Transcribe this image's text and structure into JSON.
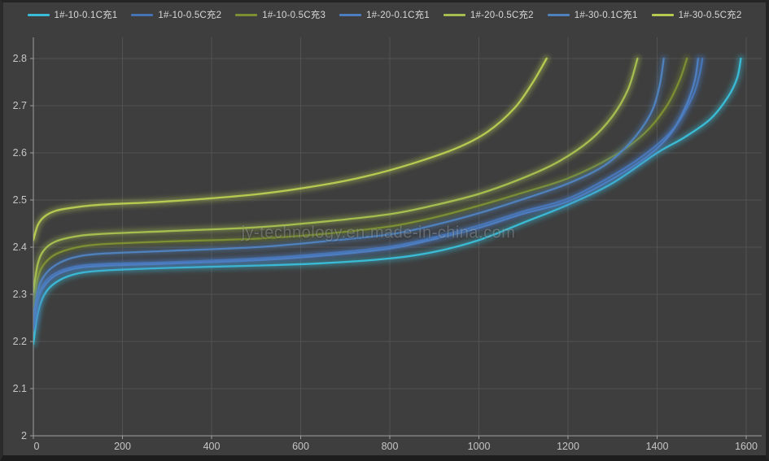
{
  "window": {
    "watermark": "jy-technology.en.made-in-china.com"
  },
  "theme": {
    "background": "#3e3e3e",
    "gridline": "#525252",
    "axis_line": "#a0a0a0",
    "tick_label": "#c6c6c6",
    "legend_text": "#d8d8d8"
  },
  "chart_data": {
    "type": "line",
    "title": "",
    "xlabel": "",
    "ylabel": "",
    "xlim": [
      0,
      1600
    ],
    "ylim": [
      2.0,
      2.8
    ],
    "grid": true,
    "legend_position": "top",
    "x_ticks": [
      0,
      200,
      400,
      600,
      800,
      1000,
      1200,
      1400,
      1600
    ],
    "x_tick_labels": [
      "0",
      "200",
      "400",
      "600",
      "800",
      "1000",
      "1200",
      "1400",
      "1600"
    ],
    "y_ticks": [
      2.0,
      2.1,
      2.2,
      2.3,
      2.4,
      2.5,
      2.6,
      2.7,
      2.8
    ],
    "y_tick_labels": [
      "2",
      "2.1",
      "2.2",
      "2.3",
      "2.4",
      "2.5",
      "2.6",
      "2.7",
      "2.8"
    ],
    "series": [
      {
        "name": "1#-10-0.1C充1",
        "color": "#3bbcd6",
        "points": [
          [
            0,
            2.195
          ],
          [
            10,
            2.26
          ],
          [
            25,
            2.3
          ],
          [
            50,
            2.325
          ],
          [
            90,
            2.342
          ],
          [
            150,
            2.35
          ],
          [
            300,
            2.356
          ],
          [
            500,
            2.361
          ],
          [
            650,
            2.366
          ],
          [
            800,
            2.376
          ],
          [
            900,
            2.39
          ],
          [
            1000,
            2.415
          ],
          [
            1100,
            2.452
          ],
          [
            1200,
            2.49
          ],
          [
            1300,
            2.536
          ],
          [
            1400,
            2.6
          ],
          [
            1460,
            2.632
          ],
          [
            1520,
            2.672
          ],
          [
            1560,
            2.72
          ],
          [
            1580,
            2.76
          ],
          [
            1588,
            2.8
          ]
        ]
      },
      {
        "name": "1#-10-0.5C充2",
        "color": "#4673b4",
        "points": [
          [
            0,
            2.235
          ],
          [
            10,
            2.295
          ],
          [
            25,
            2.325
          ],
          [
            50,
            2.345
          ],
          [
            90,
            2.358
          ],
          [
            150,
            2.364
          ],
          [
            300,
            2.368
          ],
          [
            500,
            2.376
          ],
          [
            650,
            2.386
          ],
          [
            800,
            2.401
          ],
          [
            900,
            2.421
          ],
          [
            1000,
            2.446
          ],
          [
            1100,
            2.476
          ],
          [
            1200,
            2.503
          ],
          [
            1300,
            2.552
          ],
          [
            1380,
            2.602
          ],
          [
            1440,
            2.655
          ],
          [
            1480,
            2.72
          ],
          [
            1495,
            2.765
          ],
          [
            1502,
            2.8
          ]
        ]
      },
      {
        "name": "1#-10-0.5C充3",
        "color": "#7c8f33",
        "points": [
          [
            0,
            2.275
          ],
          [
            10,
            2.335
          ],
          [
            25,
            2.365
          ],
          [
            50,
            2.385
          ],
          [
            90,
            2.398
          ],
          [
            150,
            2.406
          ],
          [
            300,
            2.412
          ],
          [
            500,
            2.418
          ],
          [
            650,
            2.428
          ],
          [
            800,
            2.444
          ],
          [
            900,
            2.463
          ],
          [
            1000,
            2.488
          ],
          [
            1100,
            2.516
          ],
          [
            1200,
            2.546
          ],
          [
            1300,
            2.592
          ],
          [
            1370,
            2.64
          ],
          [
            1420,
            2.697
          ],
          [
            1450,
            2.753
          ],
          [
            1467,
            2.8
          ]
        ]
      },
      {
        "name": "1#-20-0.1C充1",
        "color": "#4d7ec1",
        "points": [
          [
            0,
            2.225
          ],
          [
            10,
            2.288
          ],
          [
            25,
            2.318
          ],
          [
            50,
            2.34
          ],
          [
            90,
            2.354
          ],
          [
            150,
            2.36
          ],
          [
            300,
            2.365
          ],
          [
            500,
            2.372
          ],
          [
            650,
            2.382
          ],
          [
            800,
            2.397
          ],
          [
            900,
            2.417
          ],
          [
            1000,
            2.441
          ],
          [
            1100,
            2.471
          ],
          [
            1200,
            2.497
          ],
          [
            1300,
            2.545
          ],
          [
            1380,
            2.594
          ],
          [
            1430,
            2.64
          ],
          [
            1465,
            2.7
          ],
          [
            1485,
            2.755
          ],
          [
            1492,
            2.8
          ]
        ]
      },
      {
        "name": "1#-20-0.5C充2",
        "color": "#a6bd50",
        "points": [
          [
            0,
            2.305
          ],
          [
            10,
            2.365
          ],
          [
            25,
            2.395
          ],
          [
            50,
            2.412
          ],
          [
            90,
            2.422
          ],
          [
            150,
            2.428
          ],
          [
            300,
            2.434
          ],
          [
            500,
            2.442
          ],
          [
            650,
            2.454
          ],
          [
            800,
            2.47
          ],
          [
            900,
            2.489
          ],
          [
            1000,
            2.513
          ],
          [
            1100,
            2.547
          ],
          [
            1180,
            2.582
          ],
          [
            1250,
            2.627
          ],
          [
            1300,
            2.678
          ],
          [
            1335,
            2.735
          ],
          [
            1356,
            2.8
          ]
        ]
      },
      {
        "name": "1#-30-0.1C充1",
        "color": "#4f81bd",
        "points": [
          [
            0,
            2.245
          ],
          [
            10,
            2.308
          ],
          [
            25,
            2.34
          ],
          [
            50,
            2.362
          ],
          [
            90,
            2.378
          ],
          [
            150,
            2.386
          ],
          [
            300,
            2.392
          ],
          [
            500,
            2.4
          ],
          [
            650,
            2.412
          ],
          [
            800,
            2.427
          ],
          [
            900,
            2.447
          ],
          [
            1000,
            2.472
          ],
          [
            1100,
            2.502
          ],
          [
            1200,
            2.535
          ],
          [
            1280,
            2.572
          ],
          [
            1340,
            2.622
          ],
          [
            1385,
            2.682
          ],
          [
            1405,
            2.74
          ],
          [
            1415,
            2.8
          ]
        ]
      },
      {
        "name": "1#-30-0.5C充2",
        "color": "#b6ca52",
        "points": [
          [
            0,
            2.415
          ],
          [
            10,
            2.447
          ],
          [
            25,
            2.465
          ],
          [
            50,
            2.477
          ],
          [
            90,
            2.484
          ],
          [
            150,
            2.49
          ],
          [
            300,
            2.497
          ],
          [
            500,
            2.512
          ],
          [
            650,
            2.532
          ],
          [
            750,
            2.551
          ],
          [
            850,
            2.577
          ],
          [
            950,
            2.61
          ],
          [
            1020,
            2.645
          ],
          [
            1080,
            2.695
          ],
          [
            1120,
            2.748
          ],
          [
            1152,
            2.8
          ]
        ]
      }
    ]
  }
}
